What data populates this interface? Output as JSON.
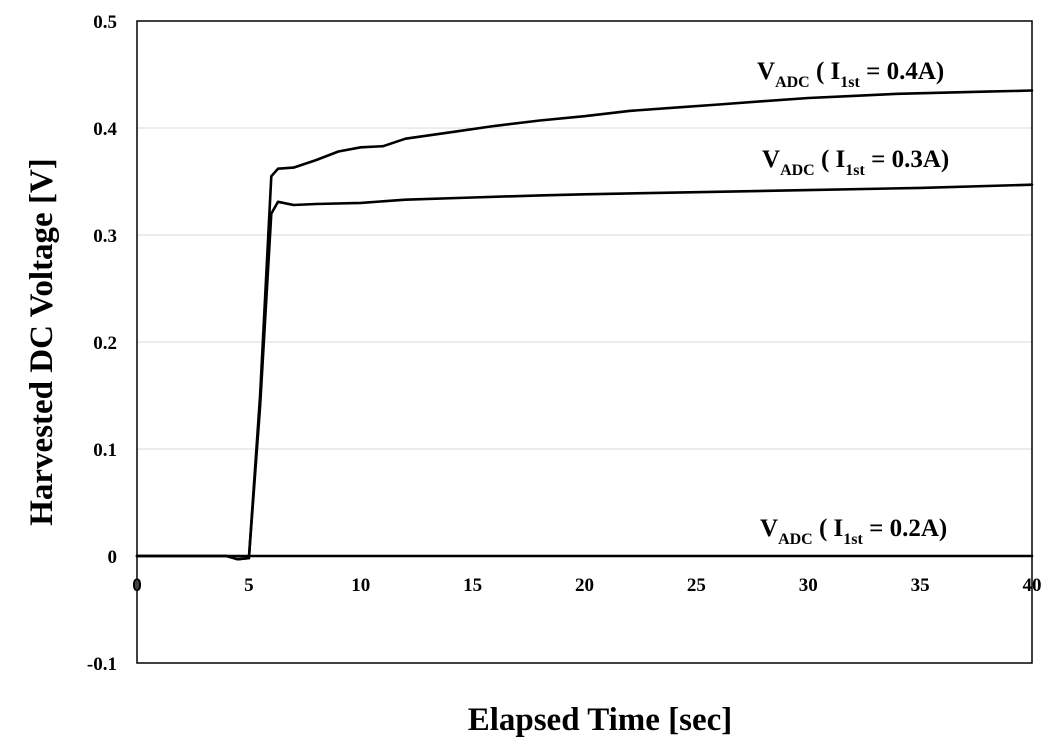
{
  "chart_data": {
    "type": "line",
    "xlabel": "Elapsed Time [sec]",
    "ylabel": "Harvested DC Voltage [V]",
    "xlim": [
      0,
      40
    ],
    "ylim": [
      -0.1,
      0.5
    ],
    "x_ticks": [
      "0",
      "5",
      "10",
      "15",
      "20",
      "25",
      "30",
      "35",
      "40"
    ],
    "y_ticks": [
      "0.5",
      "0.4",
      "0.3",
      "0.2",
      "0.1",
      "0",
      "-0.1"
    ],
    "grid": "horizontal",
    "series": [
      {
        "name": "VADC ( I1st = 0.4A)",
        "points": [
          [
            0,
            0
          ],
          [
            4,
            0
          ],
          [
            4.5,
            -0.003
          ],
          [
            5,
            -0.002
          ],
          [
            5.5,
            0.15
          ],
          [
            6,
            0.355
          ],
          [
            6.3,
            0.362
          ],
          [
            7,
            0.363
          ],
          [
            8,
            0.37
          ],
          [
            9,
            0.378
          ],
          [
            10,
            0.382
          ],
          [
            11,
            0.383
          ],
          [
            12,
            0.39
          ],
          [
            14,
            0.396
          ],
          [
            16,
            0.402
          ],
          [
            18,
            0.407
          ],
          [
            20,
            0.411
          ],
          [
            22,
            0.416
          ],
          [
            24,
            0.419
          ],
          [
            26,
            0.422
          ],
          [
            28,
            0.425
          ],
          [
            30,
            0.428
          ],
          [
            32,
            0.43
          ],
          [
            34,
            0.432
          ],
          [
            36,
            0.433
          ],
          [
            38,
            0.434
          ],
          [
            40,
            0.435
          ]
        ]
      },
      {
        "name": "VADC ( I1st = 0.3A)",
        "points": [
          [
            0,
            0
          ],
          [
            4,
            0
          ],
          [
            4.5,
            -0.003
          ],
          [
            5,
            -0.002
          ],
          [
            5.5,
            0.14
          ],
          [
            6,
            0.32
          ],
          [
            6.3,
            0.331
          ],
          [
            7,
            0.328
          ],
          [
            8,
            0.329
          ],
          [
            10,
            0.33
          ],
          [
            12,
            0.333
          ],
          [
            15,
            0.335
          ],
          [
            18,
            0.337
          ],
          [
            20,
            0.338
          ],
          [
            25,
            0.34
          ],
          [
            30,
            0.342
          ],
          [
            35,
            0.344
          ],
          [
            40,
            0.347
          ]
        ]
      },
      {
        "name": "VADC ( I1st = 0.2A)",
        "points": [
          [
            0,
            0
          ],
          [
            40,
            0
          ]
        ]
      }
    ],
    "annotations": [
      {
        "main": "V",
        "sub": "ADC",
        "mid": " ( I",
        "sub2": "1st",
        "rest": " = 0.4A)"
      },
      {
        "main": "V",
        "sub": "ADC",
        "mid": " ( I",
        "sub2": "1st",
        "rest": " = 0.3A)"
      },
      {
        "main": "V",
        "sub": "ADC",
        "mid": " ( I",
        "sub2": "1st",
        "rest": " = 0.2A)"
      }
    ]
  }
}
